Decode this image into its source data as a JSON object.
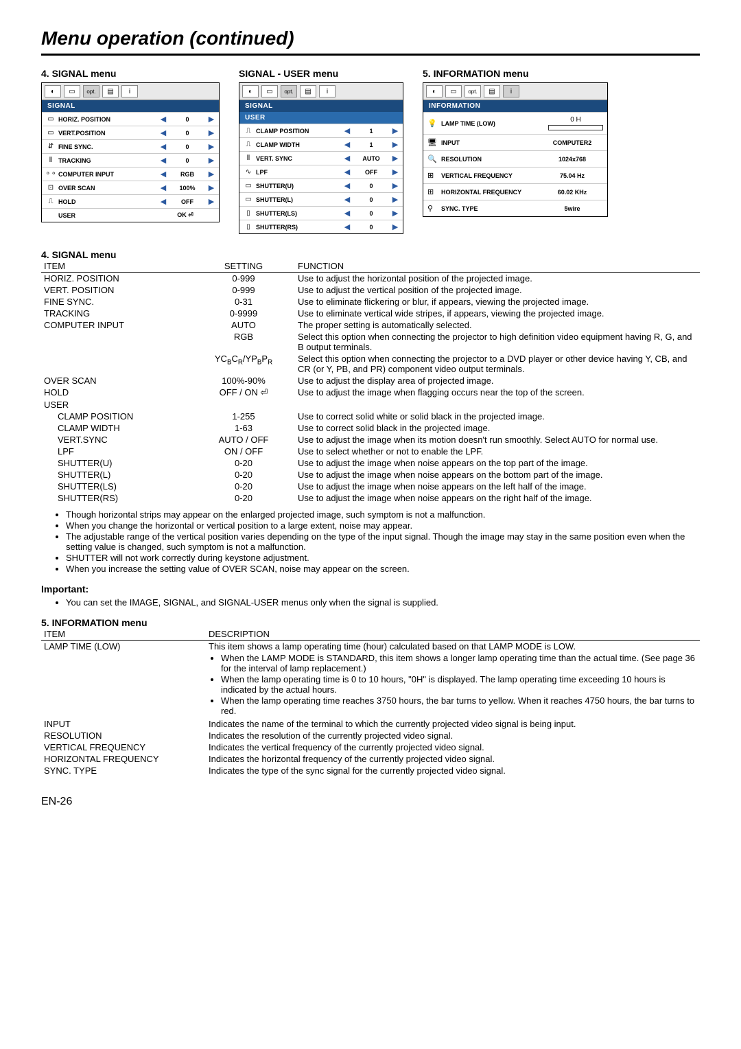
{
  "page": {
    "title": "Menu operation (continued)",
    "number": "EN-26"
  },
  "colors": {
    "menu_header_bg": "#1b4a7d",
    "menu_header_fg": "#ffffff",
    "arrow": "#2c5aa0",
    "rule": "#000000"
  },
  "menu_labels": {
    "signal": "4. SIGNAL menu",
    "signal_user": "SIGNAL - USER menu",
    "information": "5. INFORMATION menu"
  },
  "tabs": {
    "opt": "opt.",
    "info": "i"
  },
  "signal_menu": {
    "header": "SIGNAL",
    "rows": [
      {
        "icon": "▭",
        "label": "HORIZ. POSITION",
        "value": "0"
      },
      {
        "icon": "▭",
        "label": "VERT.POSITION",
        "value": "0"
      },
      {
        "icon": "⇵",
        "label": "FINE SYNC.",
        "value": "0"
      },
      {
        "icon": "⫴",
        "label": "TRACKING",
        "value": "0"
      },
      {
        "icon": "⚬⚬",
        "label": "COMPUTER INPUT",
        "value": "RGB"
      },
      {
        "icon": "⊡",
        "label": "OVER SCAN",
        "value": "100%"
      },
      {
        "icon": "⎍",
        "label": "HOLD",
        "value": "OFF"
      }
    ],
    "user_row": {
      "label": "USER",
      "value": "OK ⏎"
    }
  },
  "user_menu": {
    "header1": "SIGNAL",
    "header2": "USER",
    "rows": [
      {
        "icon": "⎍",
        "label": "CLAMP POSITION",
        "value": "1"
      },
      {
        "icon": "⎍",
        "label": "CLAMP WIDTH",
        "value": "1"
      },
      {
        "icon": "⫴",
        "label": "VERT. SYNC",
        "value": "AUTO"
      },
      {
        "icon": "∿",
        "label": "LPF",
        "value": "OFF"
      },
      {
        "icon": "▭",
        "label": "SHUTTER(U)",
        "value": "0"
      },
      {
        "icon": "▭",
        "label": "SHUTTER(L)",
        "value": "0"
      },
      {
        "icon": "▯",
        "label": "SHUTTER(LS)",
        "value": "0"
      },
      {
        "icon": "▯",
        "label": "SHUTTER(RS)",
        "value": "0"
      }
    ]
  },
  "info_menu": {
    "header": "INFORMATION",
    "rows": [
      {
        "icon": "💡",
        "label": "LAMP TIME (LOW)",
        "value": "0 H",
        "bar": true
      },
      {
        "icon": "🖥",
        "label": "INPUT",
        "value": "COMPUTER2"
      },
      {
        "icon": "🔍",
        "label": "RESOLUTION",
        "value": "1024x768"
      },
      {
        "icon": "⊞",
        "label": "VERTICAL FREQUENCY",
        "value": "75.04 Hz"
      },
      {
        "icon": "⊞",
        "label": "HORIZONTAL FREQUENCY",
        "value": "60.02 KHz"
      },
      {
        "icon": "⚲",
        "label": "SYNC. TYPE",
        "value": "5wire"
      }
    ]
  },
  "signal_table": {
    "title": "4. SIGNAL menu",
    "headers": {
      "item": "ITEM",
      "setting": "SETTING",
      "function": "FUNCTION"
    },
    "rows": [
      {
        "item": "HORIZ. POSITION",
        "setting": "0-999",
        "function": "Use to adjust the horizontal position of the projected image."
      },
      {
        "item": "VERT. POSITION",
        "setting": "0-999",
        "function": "Use to adjust the vertical position of the projected image."
      },
      {
        "item": "FINE SYNC.",
        "setting": "0-31",
        "function": "Use to eliminate flickering or blur, if appears, viewing the projected image."
      },
      {
        "item": "TRACKING",
        "setting": "0-9999",
        "function": "Use to eliminate vertical wide stripes, if appears, viewing the projected image."
      },
      {
        "item": "COMPUTER INPUT",
        "setting": "AUTO",
        "function": "The proper setting is automatically selected."
      },
      {
        "item": "",
        "setting": "RGB",
        "function": "Select this option when connecting the projector to high definition video equipment having R, G, and B output terminals."
      },
      {
        "item": "",
        "setting": "YCBCR/YPBPR",
        "ycbcr": true,
        "function": "Select this option when connecting the projector to a DVD player or other device having Y, CB, and CR (or Y, PB, and PR) component video output terminals."
      },
      {
        "item": "OVER SCAN",
        "setting": "100%-90%",
        "function": "Use to adjust the display area of projected image."
      },
      {
        "item": "HOLD",
        "setting": "OFF / ON ⏎",
        "function": "Use to adjust the image when flagging occurs near the top of the screen."
      },
      {
        "item": "USER",
        "setting": "",
        "function": ""
      },
      {
        "item": "CLAMP POSITION",
        "indent": true,
        "setting": "1-255",
        "function": "Use to correct solid white or solid black in the projected image."
      },
      {
        "item": "CLAMP WIDTH",
        "indent": true,
        "setting": "1-63",
        "function": "Use to correct solid black in the projected image."
      },
      {
        "item": "VERT.SYNC",
        "indent": true,
        "setting": "AUTO / OFF",
        "function": "Use to adjust the image when its motion doesn't run smoothly. Select AUTO for normal use."
      },
      {
        "item": "LPF",
        "indent": true,
        "setting": "ON / OFF",
        "function": "Use to select whether or not to enable the LPF."
      },
      {
        "item": "SHUTTER(U)",
        "indent": true,
        "setting": "0-20",
        "function": "Use to adjust the image when noise appears on the top part of the image."
      },
      {
        "item": "SHUTTER(L)",
        "indent": true,
        "setting": "0-20",
        "function": "Use to adjust the image when noise appears on the bottom part of the image."
      },
      {
        "item": "SHUTTER(LS)",
        "indent": true,
        "setting": "0-20",
        "function": "Use to adjust the image when noise appears on the left half of the image."
      },
      {
        "item": "SHUTTER(RS)",
        "indent": true,
        "setting": "0-20",
        "function": "Use to adjust the image when noise appears on the right half of the image."
      }
    ]
  },
  "notes": [
    "Though horizontal strips may appear on the enlarged projected image, such symptom is not a malfunction.",
    "When you change the horizontal or vertical position to a large extent, noise may appear.",
    "The adjustable range of the vertical position varies depending on the type of the input signal. Though the image may stay in the same position even when the setting value is changed, such symptom is not a malfunction.",
    "SHUTTER will not work correctly during keystone adjustment.",
    "When you increase the setting value of OVER SCAN, noise may appear on the screen."
  ],
  "important": {
    "label": "Important:",
    "items": [
      "You can set the IMAGE, SIGNAL, and SIGNAL-USER menus only when the signal is supplied."
    ]
  },
  "info_table": {
    "title": "5. INFORMATION menu",
    "headers": {
      "item": "ITEM",
      "description": "DESCRIPTION"
    },
    "rows": [
      {
        "item": "LAMP TIME (LOW)",
        "description": "This item shows a lamp operating time (hour) calculated based on that LAMP MODE is LOW.",
        "sub": [
          "When the LAMP MODE is STANDARD, this item shows a longer lamp operating time than the actual time. (See page 36 for the interval of lamp replacement.)",
          "When the lamp operating time is 0 to 10 hours, \"0H\" is displayed. The lamp operating time exceeding 10 hours is indicated by the actual hours.",
          "When the lamp operating time reaches 3750 hours, the bar turns to yellow.  When it reaches 4750 hours, the bar turns to red."
        ]
      },
      {
        "item": "INPUT",
        "description": "Indicates the name of the terminal to which the currently projected video signal is being input."
      },
      {
        "item": "RESOLUTION",
        "description": "Indicates the resolution of the currently projected video signal."
      },
      {
        "item": "VERTICAL FREQUENCY",
        "description": "Indicates the vertical frequency of the currently projected video signal."
      },
      {
        "item": "HORIZONTAL FREQUENCY",
        "description": "Indicates the horizontal frequency of the currently projected video signal."
      },
      {
        "item": "SYNC. TYPE",
        "description": "Indicates the type of the sync signal for the currently projected video signal."
      }
    ]
  }
}
